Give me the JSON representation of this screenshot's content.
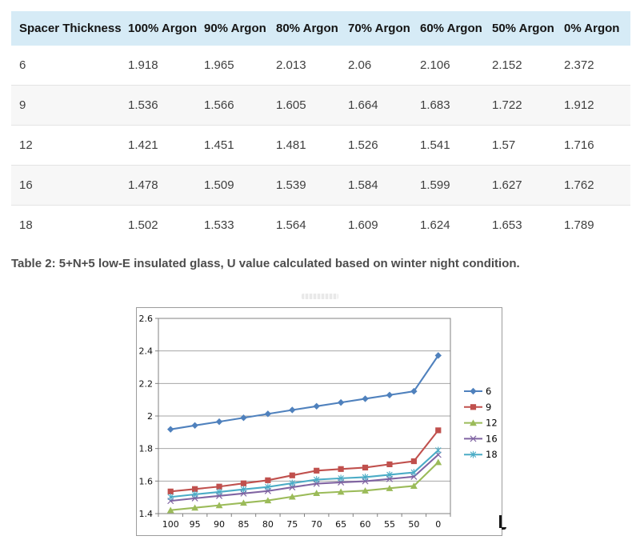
{
  "table": {
    "headers": [
      "Spacer Thickness",
      "100% Argon",
      "90% Argon",
      "80% Argon",
      "70% Argon",
      "60% Argon",
      "50% Argon",
      "0% Argon"
    ],
    "rows": [
      {
        "label": "6",
        "values": [
          "1.918",
          "1.965",
          "2.013",
          "2.06",
          "2.106",
          "2.152",
          "2.372"
        ]
      },
      {
        "label": "9",
        "values": [
          "1.536",
          "1.566",
          "1.605",
          "1.664",
          "1.683",
          "1.722",
          "1.912"
        ]
      },
      {
        "label": "12",
        "values": [
          "1.421",
          "1.451",
          "1.481",
          "1.526",
          "1.541",
          "1.57",
          "1.716"
        ]
      },
      {
        "label": "16",
        "values": [
          "1.478",
          "1.509",
          "1.539",
          "1.584",
          "1.599",
          "1.627",
          "1.762"
        ]
      },
      {
        "label": "18",
        "values": [
          "1.502",
          "1.533",
          "1.564",
          "1.609",
          "1.624",
          "1.653",
          "1.789"
        ]
      }
    ]
  },
  "caption": "Table 2: 5+N+5 low-E insulated glass, U value calculated based on winter night condition.",
  "colors": {
    "header_bg": "#d6ebf6",
    "row_alt_bg": "#f7f7f7",
    "gridline": "#a6a6a6",
    "plot_border": "#808080"
  },
  "chart_data": {
    "type": "line",
    "title": "",
    "xlabel": "",
    "ylabel": "",
    "categories": [
      "100",
      "95",
      "90",
      "85",
      "80",
      "75",
      "70",
      "65",
      "60",
      "55",
      "50",
      "0"
    ],
    "y_ticks": [
      "1.4",
      "1.6",
      "1.8",
      "2",
      "2.2",
      "2.4",
      "2.6"
    ],
    "ylim": [
      1.4,
      2.6
    ],
    "grid": true,
    "legend_position": "right",
    "series": [
      {
        "name": "6",
        "color": "#4f81bd",
        "marker": "diamond",
        "values": [
          1.918,
          1.942,
          1.965,
          1.989,
          2.013,
          2.037,
          2.06,
          2.083,
          2.106,
          2.129,
          2.152,
          2.372
        ]
      },
      {
        "name": "9",
        "color": "#c0504d",
        "marker": "square",
        "values": [
          1.536,
          1.551,
          1.566,
          1.586,
          1.605,
          1.635,
          1.664,
          1.674,
          1.683,
          1.703,
          1.722,
          1.912
        ]
      },
      {
        "name": "12",
        "color": "#9bbb59",
        "marker": "triangle",
        "values": [
          1.421,
          1.436,
          1.451,
          1.466,
          1.481,
          1.504,
          1.526,
          1.534,
          1.541,
          1.556,
          1.57,
          1.716
        ]
      },
      {
        "name": "16",
        "color": "#8064a2",
        "marker": "x",
        "values": [
          1.478,
          1.494,
          1.509,
          1.524,
          1.539,
          1.562,
          1.584,
          1.592,
          1.599,
          1.613,
          1.627,
          1.762
        ]
      },
      {
        "name": "18",
        "color": "#4bacc6",
        "marker": "asterisk",
        "values": [
          1.502,
          1.518,
          1.533,
          1.549,
          1.564,
          1.587,
          1.609,
          1.617,
          1.624,
          1.639,
          1.653,
          1.789
        ]
      }
    ]
  }
}
